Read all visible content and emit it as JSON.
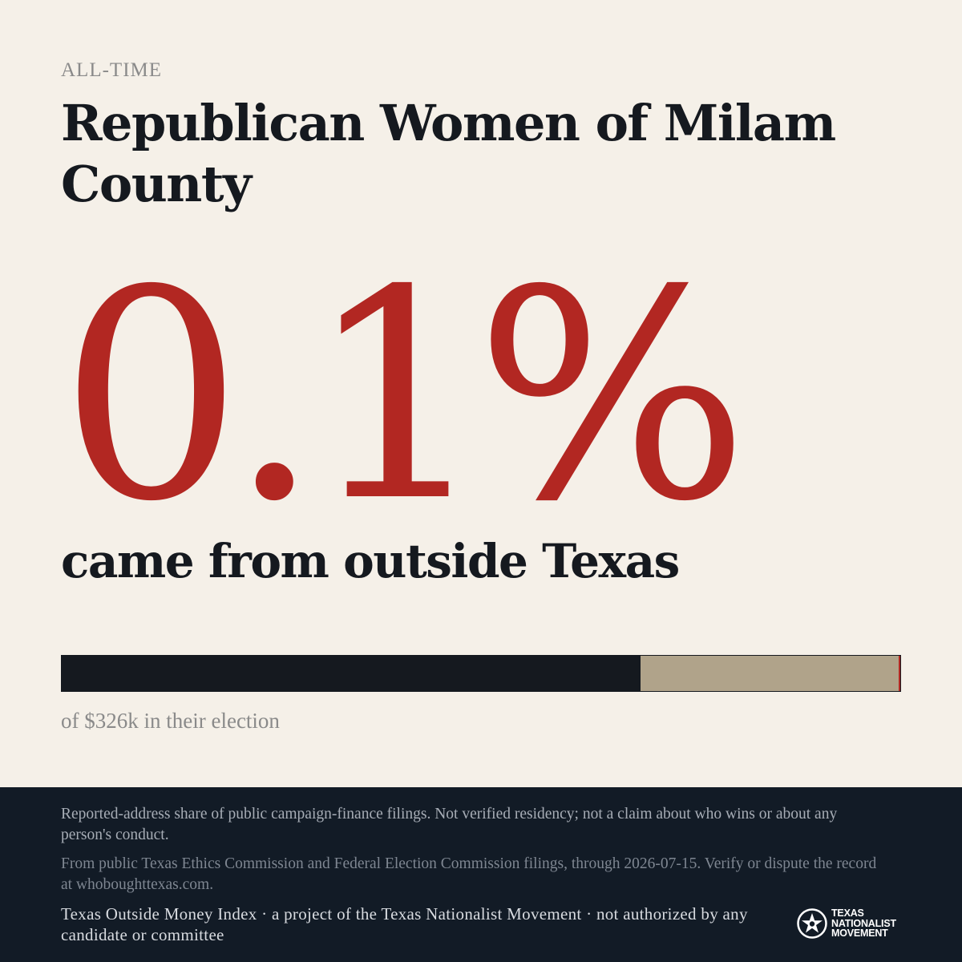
{
  "header": {
    "kicker": "ALL-TIME",
    "title": "Republican Women of Milam County"
  },
  "stat": {
    "value": "0.1%",
    "caption": "came from outside Texas"
  },
  "bar": {
    "inside_fraction": 0.69,
    "subtext": "of $326k in their election"
  },
  "footer": {
    "disclaimer": "Reported-address share of public campaign-finance filings. Not verified residency; not a claim about who wins or about any person's conduct.",
    "source": "From public Texas Ethics Commission and Federal Election Commission filings, through 2026-07-15. Verify or dispute the record at whoboughttexas.com.",
    "credit": "Texas Outside Money Index · a project of the Texas Nationalist Movement · not authorized by any candidate or committee",
    "logo": {
      "line1": "TEXAS",
      "line2": "NATIONALIST",
      "line3": "MOVEMENT"
    }
  },
  "colors": {
    "background": "#f5f0e8",
    "accent_red": "#b22722",
    "dark": "#15191f",
    "bar_remainder": "#b0a38a",
    "footer_bg": "#121b26"
  }
}
